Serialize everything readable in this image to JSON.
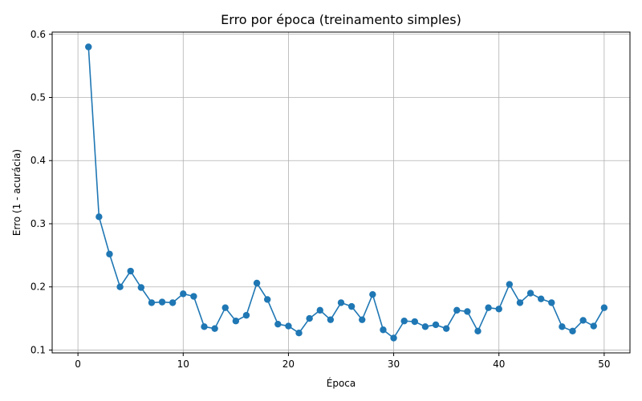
{
  "chart_data": {
    "type": "line",
    "title": "Erro por época (treinamento simples)",
    "xlabel": "Época",
    "ylabel": "Erro (1 - acurácia)",
    "xlim": [
      -2.45,
      52.45
    ],
    "ylim": [
      0.0955,
      0.6035
    ],
    "x_ticks": [
      0,
      10,
      20,
      30,
      40,
      50
    ],
    "y_ticks": [
      0.1,
      0.2,
      0.3,
      0.4,
      0.5,
      0.6
    ],
    "grid": true,
    "color": "#1f77b4",
    "marker": "circle",
    "series": [
      {
        "x": [
          1,
          2,
          3,
          4,
          5,
          6,
          7,
          8,
          9,
          10,
          11,
          12,
          13,
          14,
          15,
          16,
          17,
          18,
          19,
          20,
          21,
          22,
          23,
          24,
          25,
          26,
          27,
          28,
          29,
          30,
          31,
          32,
          33,
          34,
          35,
          36,
          37,
          38,
          39,
          40,
          41,
          42,
          43,
          44,
          45,
          46,
          47,
          48,
          49,
          50
        ],
        "values": [
          0.58,
          0.311,
          0.252,
          0.2,
          0.225,
          0.199,
          0.175,
          0.176,
          0.175,
          0.189,
          0.185,
          0.137,
          0.134,
          0.167,
          0.146,
          0.155,
          0.206,
          0.18,
          0.141,
          0.138,
          0.127,
          0.15,
          0.163,
          0.148,
          0.175,
          0.169,
          0.148,
          0.188,
          0.132,
          0.119,
          0.146,
          0.145,
          0.137,
          0.14,
          0.134,
          0.163,
          0.161,
          0.13,
          0.167,
          0.165,
          0.204,
          0.175,
          0.19,
          0.181,
          0.175,
          0.137,
          0.13,
          0.147,
          0.138,
          0.167
        ]
      }
    ]
  }
}
